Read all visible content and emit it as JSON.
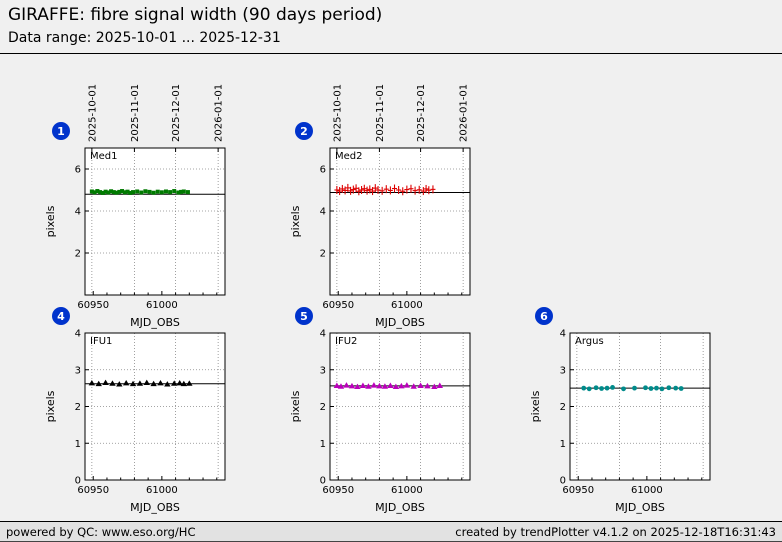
{
  "header": {
    "title": "GIRAFFE: fibre signal width (90 days period)",
    "subtitle": "Data range: 2025-10-01 ... 2025-12-31"
  },
  "footer": {
    "left": "powered by QC: www.eso.org/HC",
    "right": "created by trendPlotter v4.1.2 on 2025-12-18T16:31:43"
  },
  "badge_color": "#0033cc",
  "chart_data": [
    {
      "index": "1",
      "label": "Med1",
      "type": "scatter",
      "marker": "square",
      "color": "#007a00",
      "xlabel": "MJD_OBS",
      "ylabel": "pixels",
      "xlim": [
        60944,
        61046
      ],
      "ylim": [
        0,
        7
      ],
      "yticks": [
        2,
        4,
        6
      ],
      "xticks": [
        60950,
        61000
      ],
      "minor_xtick_step": 10,
      "xgrid": [
        60949,
        60980,
        61010,
        61041
      ],
      "date_axis": [
        {
          "label": "2025-10-01",
          "mjd": 60949
        },
        {
          "label": "2025-11-01",
          "mjd": 60980
        },
        {
          "label": "2025-12-01",
          "mjd": 61010
        },
        {
          "label": "2026-01-01",
          "mjd": 61041
        }
      ],
      "ref_line": 4.8,
      "x": [
        60949,
        60951,
        60953,
        60955,
        60957,
        60959,
        60961,
        60963,
        60965,
        60967,
        60969,
        60971,
        60973,
        60975,
        60977,
        60979,
        60982,
        60985,
        60988,
        60991,
        60994,
        60997,
        61000,
        61003,
        61006,
        61009,
        61012,
        61014,
        61016,
        61019
      ],
      "y": [
        4.93,
        4.89,
        4.95,
        4.9,
        4.86,
        4.92,
        4.88,
        4.94,
        4.9,
        4.87,
        4.91,
        4.95,
        4.89,
        4.92,
        4.86,
        4.9,
        4.93,
        4.88,
        4.94,
        4.91,
        4.87,
        4.92,
        4.89,
        4.93,
        4.9,
        4.95,
        4.88,
        4.91,
        4.93,
        4.9
      ]
    },
    {
      "index": "2",
      "label": "Med2",
      "type": "scatter",
      "marker": "plus",
      "color": "#dd0000",
      "xlabel": "MJD_OBS",
      "ylabel": "pixels",
      "xlim": [
        60944,
        61046
      ],
      "ylim": [
        0,
        7
      ],
      "yticks": [
        2,
        4,
        6
      ],
      "xticks": [
        60950,
        61000
      ],
      "minor_xtick_step": 10,
      "xgrid": [
        60949,
        60980,
        61010,
        61041
      ],
      "date_axis": [
        {
          "label": "2025-10-01",
          "mjd": 60949
        },
        {
          "label": "2025-11-01",
          "mjd": 60980
        },
        {
          "label": "2025-12-01",
          "mjd": 61010
        },
        {
          "label": "2026-01-01",
          "mjd": 61041
        }
      ],
      "ref_line": 4.88,
      "x": [
        60949,
        60951,
        60953,
        60955,
        60957,
        60959,
        60961,
        60963,
        60965,
        60967,
        60969,
        60971,
        60973,
        60975,
        60977,
        60979,
        60982,
        60985,
        60988,
        60991,
        60994,
        60997,
        61000,
        61003,
        61006,
        61009,
        61012,
        61014,
        61016,
        61019
      ],
      "y": [
        5.0,
        4.95,
        5.05,
        4.98,
        5.1,
        4.96,
        5.02,
        5.08,
        4.94,
        5.0,
        5.06,
        4.97,
        5.03,
        4.95,
        5.09,
        5.0,
        4.96,
        5.04,
        4.98,
        5.07,
        5.0,
        4.94,
        5.02,
        5.06,
        4.97,
        5.01,
        4.95,
        5.05,
        4.99,
        5.03
      ]
    },
    {
      "index": "4",
      "label": "IFU1",
      "type": "scatter",
      "marker": "triangle",
      "color": "#000000",
      "xlabel": "MJD_OBS",
      "ylabel": "pixels",
      "xlim": [
        60944,
        61046
      ],
      "ylim": [
        0,
        4
      ],
      "yticks": [
        0,
        1,
        2,
        3,
        4
      ],
      "xticks": [
        60950,
        61000
      ],
      "minor_xtick_step": 10,
      "xgrid": [
        60949,
        60980,
        61010,
        61041
      ],
      "ref_line": 2.62,
      "x": [
        60949,
        60954,
        60959,
        60964,
        60969,
        60974,
        60979,
        60984,
        60989,
        60994,
        60999,
        61004,
        61009,
        61013,
        61016,
        61020
      ],
      "y": [
        2.64,
        2.62,
        2.65,
        2.63,
        2.61,
        2.64,
        2.62,
        2.63,
        2.65,
        2.62,
        2.64,
        2.61,
        2.63,
        2.64,
        2.62,
        2.63
      ]
    },
    {
      "index": "5",
      "label": "IFU2",
      "type": "scatter",
      "marker": "triangle",
      "color": "#bb00bb",
      "xlabel": "MJD_OBS",
      "ylabel": "pixels",
      "xlim": [
        60944,
        61046
      ],
      "ylim": [
        0,
        4
      ],
      "yticks": [
        0,
        1,
        2,
        3,
        4
      ],
      "xticks": [
        60950,
        61000
      ],
      "minor_xtick_step": 10,
      "xgrid": [
        60949,
        60980,
        61010,
        61041
      ],
      "ref_line": 2.56,
      "x": [
        60949,
        60952,
        60956,
        60960,
        60964,
        60968,
        60972,
        60976,
        60980,
        60984,
        60988,
        60992,
        60996,
        61000,
        61005,
        61010,
        61015,
        61020,
        61024
      ],
      "y": [
        2.57,
        2.55,
        2.58,
        2.56,
        2.54,
        2.57,
        2.55,
        2.58,
        2.56,
        2.55,
        2.57,
        2.54,
        2.56,
        2.58,
        2.55,
        2.57,
        2.56,
        2.54,
        2.57
      ]
    },
    {
      "index": "6",
      "label": "Argus",
      "type": "scatter",
      "marker": "circle",
      "color": "#008b8b",
      "xlabel": "MJD_OBS",
      "ylabel": "pixels",
      "xlim": [
        60944,
        61046
      ],
      "ylim": [
        0,
        4
      ],
      "yticks": [
        0,
        1,
        2,
        3,
        4
      ],
      "xticks": [
        60950,
        61000
      ],
      "minor_xtick_step": 10,
      "xgrid": [
        60949,
        60980,
        61010,
        61041
      ],
      "ref_line": 2.5,
      "x": [
        60954,
        60958,
        60963,
        60967,
        60971,
        60975,
        60983,
        60991,
        60999,
        61003,
        61007,
        61011,
        61016,
        61021,
        61025
      ],
      "y": [
        2.5,
        2.48,
        2.51,
        2.49,
        2.5,
        2.52,
        2.48,
        2.5,
        2.51,
        2.49,
        2.5,
        2.48,
        2.51,
        2.5,
        2.49
      ]
    }
  ]
}
